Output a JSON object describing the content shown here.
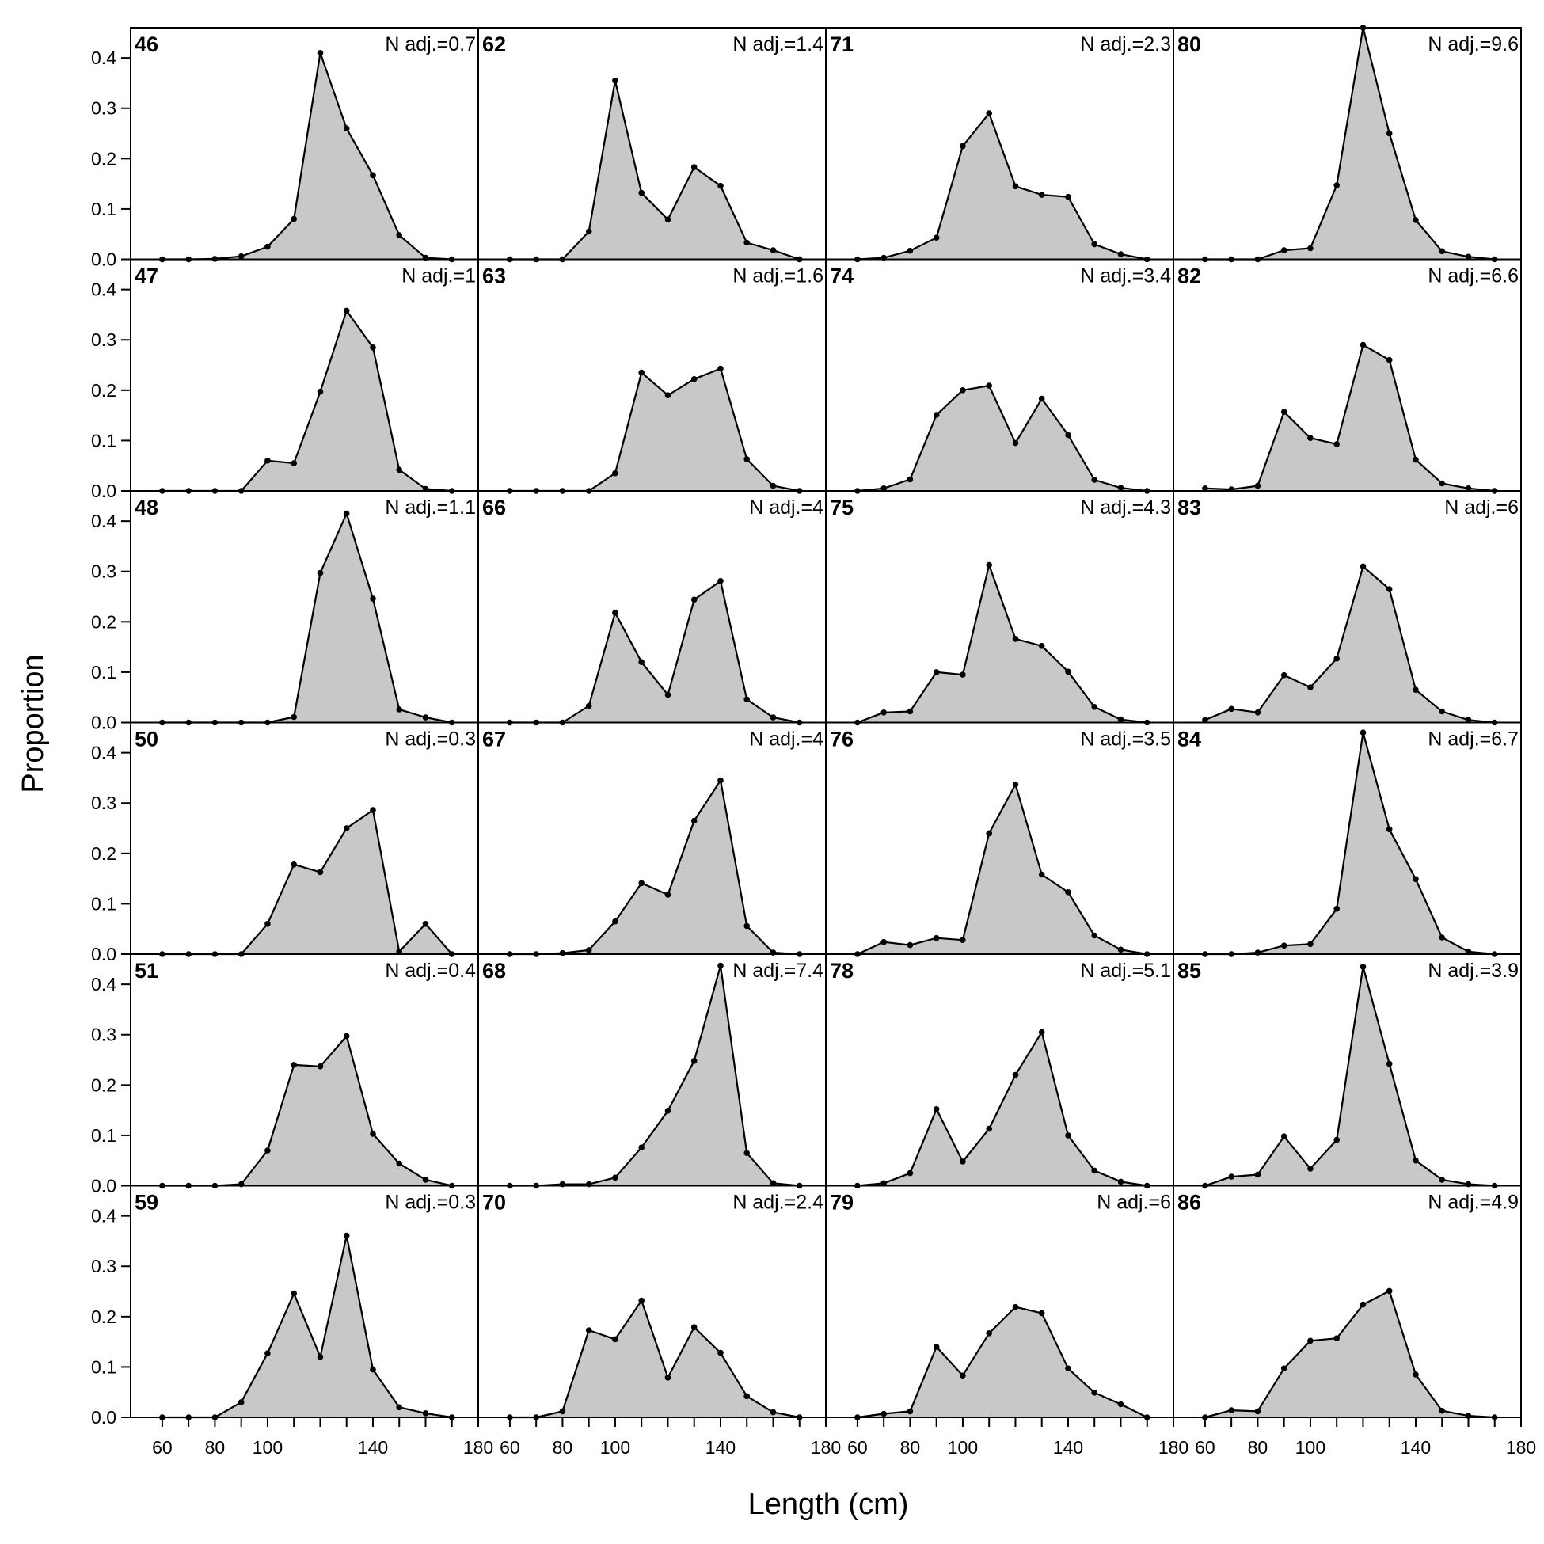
{
  "chart_data": {
    "type": "area",
    "xlabel": "Length (cm)",
    "ylabel": "Proportion",
    "xlim": [
      48,
      180
    ],
    "ylim": [
      0,
      0.46
    ],
    "x_ticks": [
      60,
      80,
      100,
      140,
      180
    ],
    "y_ticks": [
      "0.0",
      "0.1",
      "0.2",
      "0.3",
      "0.4"
    ],
    "grid": false,
    "x": [
      60,
      70,
      80,
      90,
      100,
      110,
      120,
      130,
      140,
      150,
      160,
      170
    ],
    "panel_columns": 4,
    "panel_rows": 6,
    "panels": [
      {
        "label": "46",
        "nadj": "N adj.=0.7",
        "values": [
          0,
          0,
          0.001,
          0.006,
          0.025,
          0.08,
          0.41,
          0.26,
          0.167,
          0.048,
          0.003,
          0
        ]
      },
      {
        "label": "47",
        "nadj": "N adj.=1",
        "values": [
          0,
          0,
          0,
          0,
          0.06,
          0.055,
          0.197,
          0.358,
          0.285,
          0.042,
          0.004,
          0
        ]
      },
      {
        "label": "48",
        "nadj": "N adj.=1.1",
        "values": [
          0,
          0,
          0,
          0,
          0,
          0.011,
          0.297,
          0.415,
          0.246,
          0.026,
          0.01,
          0
        ]
      },
      {
        "label": "50",
        "nadj": "N adj.=0.3",
        "values": [
          0,
          0,
          0,
          0,
          0.06,
          0.178,
          0.163,
          0.25,
          0.286,
          0.005,
          0.06,
          0
        ]
      },
      {
        "label": "51",
        "nadj": "N adj.=0.4",
        "values": [
          0,
          0,
          0,
          0.003,
          0.07,
          0.24,
          0.237,
          0.297,
          0.103,
          0.044,
          0.012,
          0
        ]
      },
      {
        "label": "59",
        "nadj": "N adj.=0.3",
        "values": [
          0,
          0,
          0,
          0.03,
          0.127,
          0.246,
          0.12,
          0.361,
          0.095,
          0.02,
          0.008,
          0
        ]
      },
      {
        "label": "62",
        "nadj": "N adj.=1.4",
        "values": [
          0,
          0,
          0,
          0.055,
          0.355,
          0.132,
          0.079,
          0.183,
          0.146,
          0.033,
          0.018,
          0
        ]
      },
      {
        "label": "63",
        "nadj": "N adj.=1.6",
        "values": [
          0,
          0,
          0,
          0,
          0.035,
          0.235,
          0.19,
          0.222,
          0.243,
          0.063,
          0.01,
          0
        ]
      },
      {
        "label": "66",
        "nadj": "N adj.=4",
        "values": [
          0,
          0,
          0,
          0.033,
          0.218,
          0.12,
          0.055,
          0.244,
          0.281,
          0.046,
          0.01,
          0
        ]
      },
      {
        "label": "67",
        "nadj": "N adj.=4",
        "values": [
          0,
          0,
          0.002,
          0.008,
          0.065,
          0.141,
          0.118,
          0.265,
          0.345,
          0.056,
          0.003,
          0
        ]
      },
      {
        "label": "68",
        "nadj": "N adj.=7.4",
        "values": [
          0,
          0,
          0.003,
          0.003,
          0.016,
          0.076,
          0.149,
          0.248,
          0.437,
          0.065,
          0.005,
          0
        ]
      },
      {
        "label": "70",
        "nadj": "N adj.=2.4",
        "values": [
          0,
          0,
          0.012,
          0.173,
          0.155,
          0.232,
          0.079,
          0.179,
          0.128,
          0.042,
          0.01,
          0
        ]
      },
      {
        "label": "71",
        "nadj": "N adj.=2.3",
        "values": [
          0,
          0.003,
          0.017,
          0.043,
          0.225,
          0.29,
          0.145,
          0.128,
          0.124,
          0.03,
          0.01,
          0
        ]
      },
      {
        "label": "74",
        "nadj": "N adj.=3.4",
        "values": [
          0,
          0.005,
          0.023,
          0.151,
          0.2,
          0.209,
          0.095,
          0.183,
          0.111,
          0.022,
          0.006,
          0
        ]
      },
      {
        "label": "75",
        "nadj": "N adj.=4.3",
        "values": [
          0,
          0.02,
          0.022,
          0.1,
          0.095,
          0.313,
          0.166,
          0.152,
          0.101,
          0.031,
          0.006,
          0
        ]
      },
      {
        "label": "76",
        "nadj": "N adj.=3.5",
        "values": [
          0,
          0.024,
          0.018,
          0.032,
          0.028,
          0.24,
          0.337,
          0.158,
          0.123,
          0.037,
          0.009,
          0
        ]
      },
      {
        "label": "78",
        "nadj": "N adj.=5.1",
        "values": [
          0,
          0.005,
          0.025,
          0.152,
          0.048,
          0.113,
          0.22,
          0.305,
          0.1,
          0.03,
          0.008,
          0
        ]
      },
      {
        "label": "79",
        "nadj": "N adj.=6",
        "values": [
          0,
          0.007,
          0.012,
          0.14,
          0.083,
          0.167,
          0.219,
          0.207,
          0.097,
          0.049,
          0.026,
          0
        ]
      },
      {
        "label": "80",
        "nadj": "N adj.=9.6",
        "values": [
          0,
          0,
          0,
          0.018,
          0.022,
          0.147,
          0.46,
          0.25,
          0.078,
          0.016,
          0.005,
          0
        ]
      },
      {
        "label": "82",
        "nadj": "N adj.=6.6",
        "values": [
          0.005,
          0.003,
          0.01,
          0.157,
          0.105,
          0.093,
          0.29,
          0.26,
          0.062,
          0.015,
          0.005,
          0
        ]
      },
      {
        "label": "83",
        "nadj": "N adj.=6",
        "values": [
          0.005,
          0.027,
          0.02,
          0.094,
          0.07,
          0.127,
          0.31,
          0.265,
          0.065,
          0.022,
          0.005,
          0
        ]
      },
      {
        "label": "84",
        "nadj": "N adj.=6.7",
        "values": [
          0,
          0,
          0.003,
          0.017,
          0.02,
          0.09,
          0.44,
          0.248,
          0.149,
          0.033,
          0.005,
          0
        ]
      },
      {
        "label": "85",
        "nadj": "N adj.=3.9",
        "values": [
          0,
          0.018,
          0.022,
          0.098,
          0.034,
          0.091,
          0.435,
          0.242,
          0.05,
          0.012,
          0.003,
          0
        ]
      },
      {
        "label": "86",
        "nadj": "N adj.=4.9",
        "values": [
          0,
          0.014,
          0.012,
          0.097,
          0.152,
          0.157,
          0.224,
          0.251,
          0.085,
          0.013,
          0.003,
          0
        ]
      }
    ]
  }
}
